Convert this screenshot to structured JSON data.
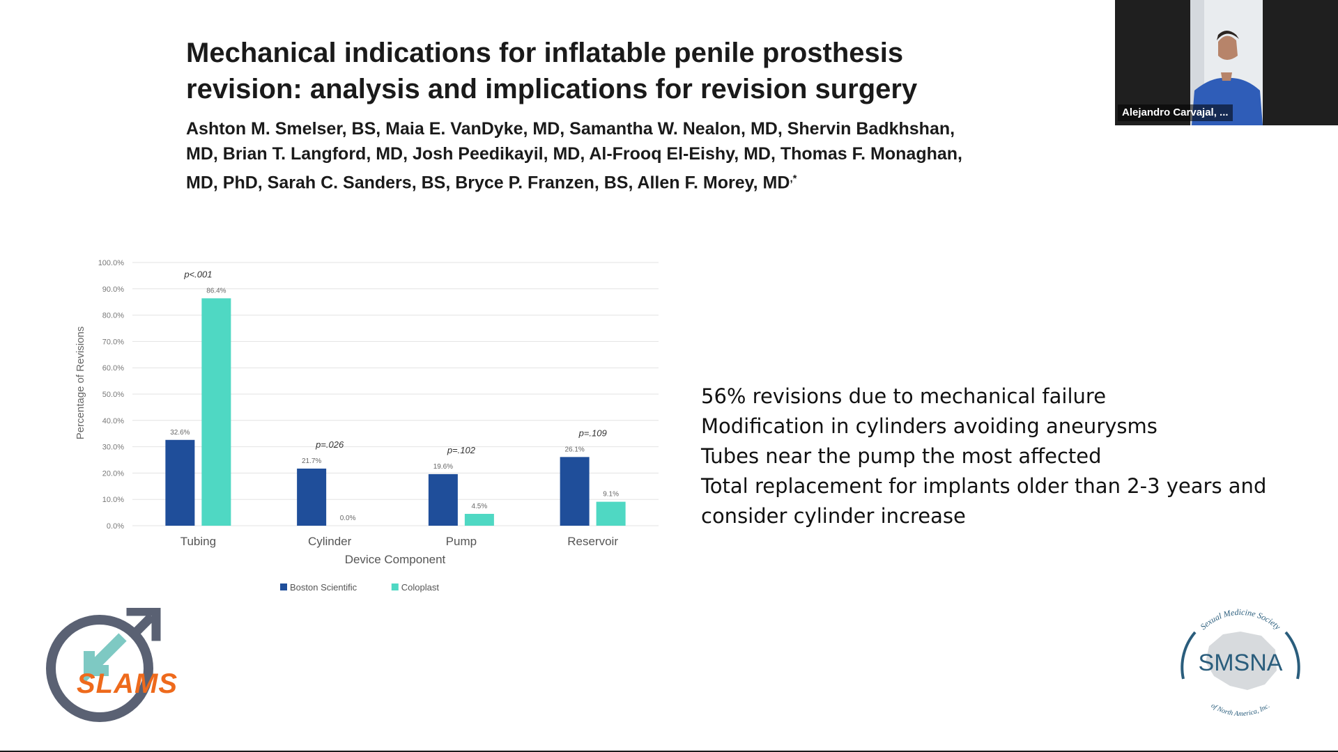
{
  "slide": {
    "title_lines": [
      "Mechanical indications for inflatable penile prosthesis",
      "revision: analysis and implications for revision surgery"
    ],
    "author_lines": [
      "Ashton M. Smelser, BS, Maia E. VanDyke, MD, Samantha W. Nealon, MD, Shervin Badkhshan,",
      "MD, Brian T. Langford, MD, Josh Peedikayil, MD, Al-Frooq El-Eishy, MD, Thomas F. Monaghan,",
      "MD, PhD, Sarah C. Sanders, BS, Bryce P. Franzen, BS, Allen F. Morey, MD",
      ",*"
    ],
    "bullets": [
      "56% revisions due to mechanical failure",
      "Modification in cylinders avoiding aneurysms",
      "Tubes near the pump the most affected",
      "Total replacement for implants older than 2-3 years and",
      "consider cylinder increase"
    ],
    "left_logo": {
      "text": "SLAMS",
      "icon": "male-symbol-arrow-logo-icon",
      "colors": {
        "ring": "#5a6173",
        "arrow": "#7ec9c3",
        "text": "#ee6a1c"
      }
    },
    "right_logo": {
      "arc_top": "Sexual Medicine Society",
      "text": "SMSNA",
      "arc_bottom": "of North America, Inc.",
      "color": "#2a5d7c",
      "icon": "north-america-map-icon"
    }
  },
  "video": {
    "participant_name": "Alejandro Carvajal, ...",
    "icon": "participant-video-icon"
  },
  "chart_data": {
    "type": "bar",
    "categories": [
      "Tubing",
      "Cylinder",
      "Pump",
      "Reservoir"
    ],
    "series": [
      {
        "name": "Boston Scientific",
        "values": [
          32.6,
          21.7,
          19.6,
          26.1
        ],
        "labels": [
          "32.6%",
          "21.7%",
          "19.6%",
          "26.1%"
        ],
        "color": "#1f4e9a"
      },
      {
        "name": "Coloplast",
        "values": [
          86.4,
          0.0,
          4.5,
          9.1
        ],
        "labels": [
          "86.4%",
          "0.0%",
          "4.5%",
          "9.1%"
        ],
        "color": "#4fd8c3"
      }
    ],
    "p_values": [
      "p<.001",
      "p=.026",
      "p=.102",
      "p=.109"
    ],
    "xlabel": "Device Component",
    "ylabel": "Percentage of Revisions",
    "yticks": [
      "0.0%",
      "10.0%",
      "20.0%",
      "30.0%",
      "40.0%",
      "50.0%",
      "60.0%",
      "70.0%",
      "80.0%",
      "90.0%",
      "100.0%"
    ],
    "ylim": [
      0,
      100
    ],
    "grid": true,
    "legend_position": "bottom"
  }
}
